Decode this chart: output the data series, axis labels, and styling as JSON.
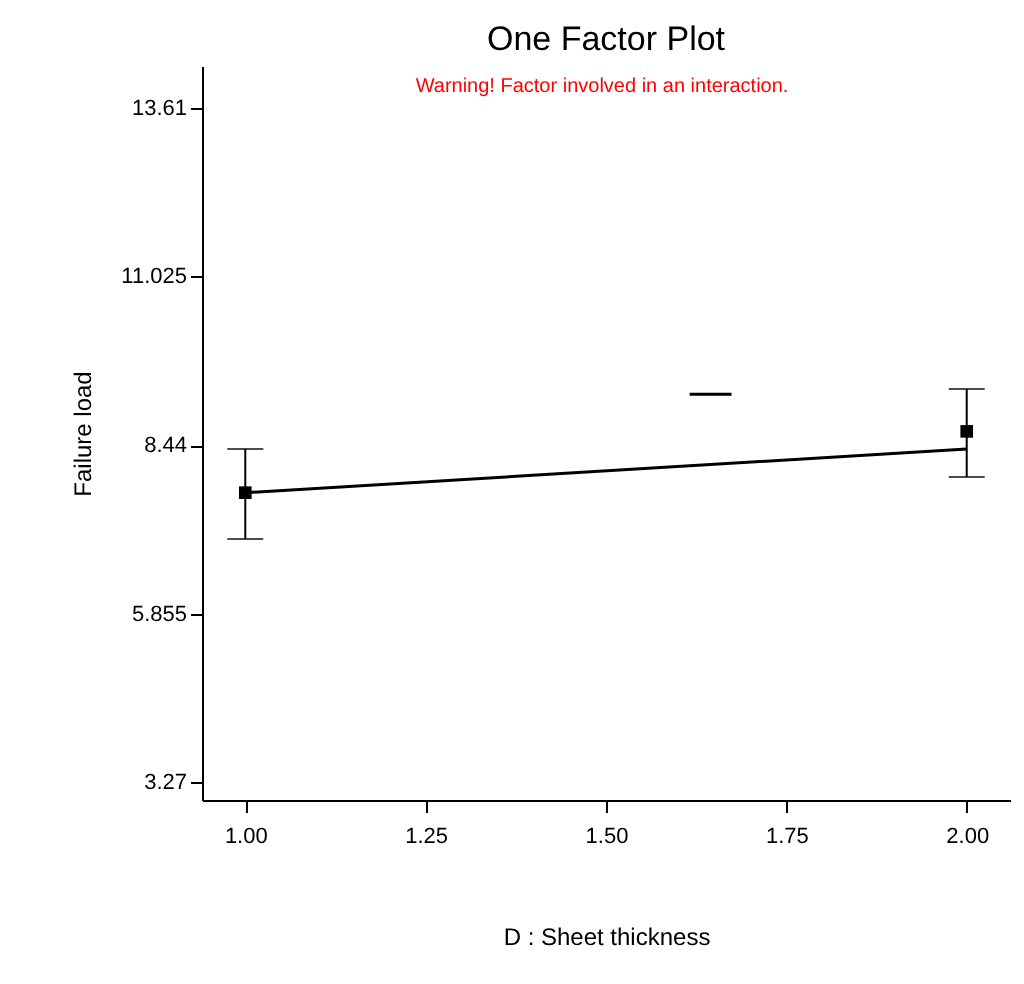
{
  "chart_data": {
    "type": "scatter",
    "title": "One Factor Plot",
    "xlabel": "D : Sheet thickness",
    "ylabel": "Failure load",
    "annotations": [
      "Warning! Factor involved in an interaction."
    ],
    "xlim": [
      0.94,
      2.06
    ],
    "ylim": [
      3.0,
      14.25
    ],
    "xticks": [
      {
        "value": 1,
        "label": "1.00"
      },
      {
        "value": 1.25,
        "label": "1.25"
      },
      {
        "value": 1.5,
        "label": "1.50"
      },
      {
        "value": 1.75,
        "label": "1.75"
      },
      {
        "value": 2,
        "label": "2.00"
      }
    ],
    "yticks": [
      3.27,
      5.855,
      8.44,
      11.025,
      13.61
    ],
    "grid": false,
    "series": [
      {
        "type": "line",
        "color": "#000000",
        "x": [
          1,
          2
        ],
        "values": [
          7.71,
          8.38
        ],
        "line_style": "solid"
      },
      {
        "type": "scatter",
        "color": "#000000",
        "x": [
          1,
          2
        ],
        "values": [
          7.71,
          8.65
        ],
        "errors": [
          [
            7.0,
            8.38
          ],
          [
            7.95,
            9.3
          ]
        ],
        "marker": "square"
      },
      {
        "type": "line",
        "color": "#000000",
        "x": [
          1.616,
          1.674
        ],
        "values": [
          9.22,
          9.22
        ],
        "line_style": "solid"
      }
    ]
  }
}
